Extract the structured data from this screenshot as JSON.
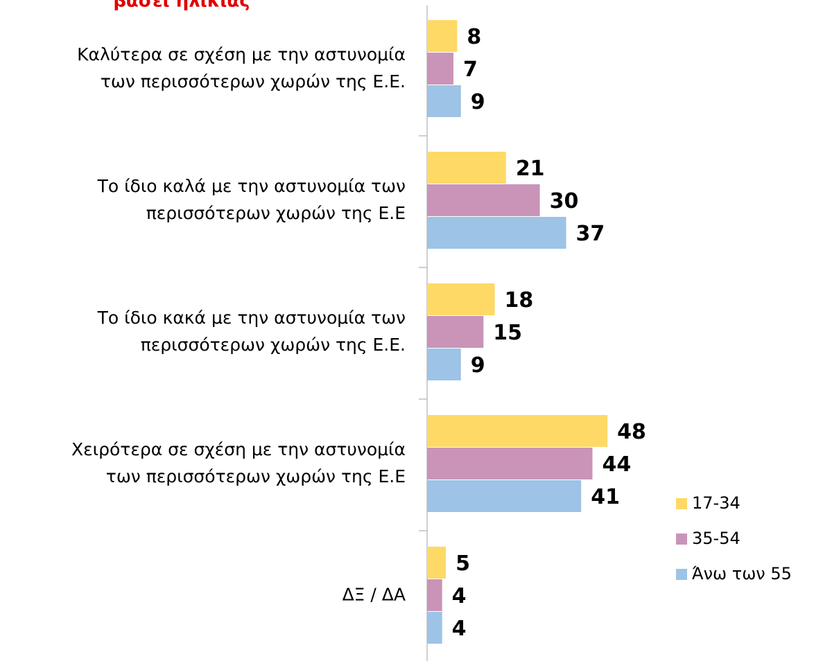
{
  "chart_data": {
    "type": "hbar",
    "title": "βάσει ηλικίας",
    "categories": [
      [
        "Καλύτερα σε σχέση με την αστυνομία",
        "των περισσότερων χωρών της Ε.Ε."
      ],
      [
        "Το ίδιο καλά με την αστυνομία των",
        "περισσότερων χωρών της Ε.Ε"
      ],
      [
        "Το ίδιο κακά με την αστυνομία των",
        "περισσότερων χωρών της Ε.Ε."
      ],
      [
        "Χειρότερα σε σχέση με την αστυνομία",
        "των περισσότερων χωρών της Ε.Ε"
      ],
      [
        "ΔΞ / ΔΑ"
      ]
    ],
    "series": [
      {
        "name": "17-34",
        "color": "#FFD966",
        "values": [
          8,
          21,
          18,
          48,
          5
        ]
      },
      {
        "name": "35-54",
        "color": "#C994B8",
        "values": [
          7,
          30,
          15,
          44,
          4
        ]
      },
      {
        "name": "Άνω των 55",
        "color": "#9DC3E6",
        "values": [
          9,
          37,
          9,
          41,
          4
        ]
      }
    ],
    "xlim": [
      0,
      100
    ],
    "legend": "right"
  }
}
